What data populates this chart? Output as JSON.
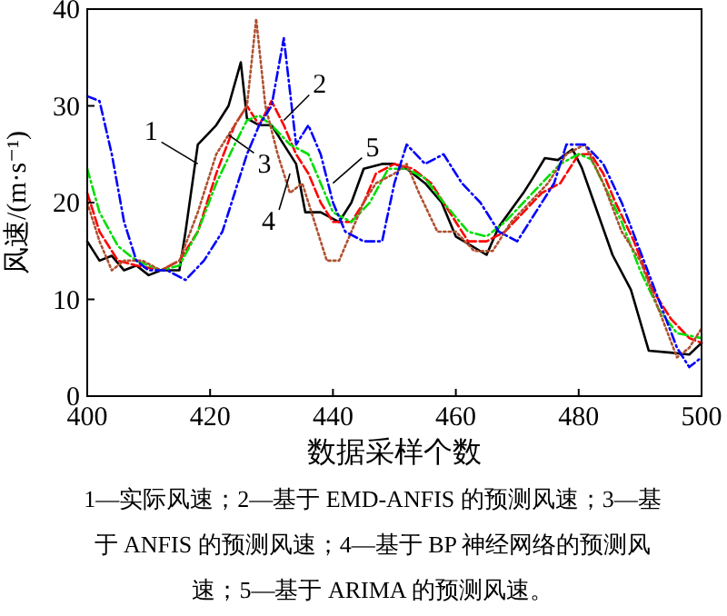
{
  "chart_data": {
    "type": "line",
    "xlabel": "数据采样个数",
    "ylabel": "风速/(m·s⁻¹)",
    "xlim": [
      400,
      500
    ],
    "xticks": [
      400,
      420,
      440,
      460,
      480,
      500
    ],
    "ylim": [
      0,
      40
    ],
    "yticks": [
      0,
      10,
      20,
      30,
      40
    ],
    "grid": false,
    "marker": "none",
    "series": [
      {
        "color": "#000000",
        "line_style": "solid",
        "x": [
          400,
          402,
          404,
          406,
          408,
          410,
          412,
          415,
          416,
          418,
          421,
          423,
          425,
          426,
          428,
          430,
          432,
          434,
          435.5,
          438,
          441,
          443,
          445,
          448,
          450,
          452,
          455,
          457.7,
          460,
          465,
          467,
          471,
          472.5,
          474.5,
          476.6,
          479,
          480.5,
          482.5,
          485.5,
          488.5,
          491.4,
          495,
          498,
          500
        ],
        "values": [
          16,
          14,
          14.5,
          13,
          13.5,
          12.5,
          13,
          13,
          17,
          26,
          28,
          30,
          34.5,
          28.7,
          28,
          28,
          26,
          24,
          19,
          19,
          18,
          20,
          23.5,
          24,
          24,
          23.5,
          22,
          20,
          16.5,
          14.6,
          17.5,
          21,
          22.5,
          24.6,
          24.4,
          25.5,
          23.6,
          20,
          14.6,
          11,
          4.7,
          4.5,
          4.3,
          5.5
        ]
      },
      {
        "color": "#ff0000",
        "line_style": "dashed",
        "x": [
          400,
          402,
          405,
          408,
          412,
          415,
          418,
          421,
          424,
          426,
          428,
          430,
          432,
          434,
          436,
          438,
          440,
          443,
          445,
          447,
          450,
          453,
          456,
          459,
          462,
          465,
          468,
          471,
          474,
          477,
          480,
          482,
          484,
          486,
          489,
          492,
          495,
          498,
          500
        ],
        "values": [
          21,
          17,
          14,
          13.5,
          13,
          14,
          17,
          23,
          28,
          30,
          28,
          30.5,
          28,
          25,
          23,
          20,
          18,
          18,
          20,
          23,
          24,
          23.5,
          22,
          19,
          16,
          16,
          17,
          19,
          21,
          22,
          25,
          25,
          23,
          20,
          16,
          11,
          8,
          6,
          5.5
        ]
      },
      {
        "color": "#00dd00",
        "line_style": "dashdot",
        "x": [
          400,
          402,
          405,
          408,
          412,
          415,
          418,
          421,
          424,
          426,
          428,
          430,
          433,
          436,
          438,
          440,
          443,
          446,
          449,
          452,
          455,
          458,
          462,
          465,
          468,
          471,
          474,
          477,
          480,
          482,
          484,
          487,
          490,
          493,
          496,
          500
        ],
        "values": [
          23.5,
          19,
          15.5,
          14,
          13,
          13.5,
          17,
          22,
          26,
          28.5,
          29,
          28,
          26,
          25,
          22,
          19,
          18,
          20,
          23.5,
          23.5,
          22.5,
          20,
          17,
          16.5,
          18,
          20,
          22,
          24,
          25,
          24.5,
          22,
          18,
          13,
          9,
          6.5,
          6
        ]
      },
      {
        "color": "#b05030",
        "line_style": "dotted",
        "x": [
          400,
          402,
          404,
          406,
          409,
          412,
          415,
          418,
          421,
          424,
          426,
          427.5,
          429,
          431,
          433,
          435,
          437,
          439,
          441,
          443,
          445,
          447,
          450,
          452,
          454,
          457,
          460,
          463,
          466,
          469,
          472,
          475,
          478,
          481,
          484,
          487,
          490,
          493,
          496,
          498,
          500
        ],
        "values": [
          20,
          16,
          13,
          14,
          14,
          13,
          14,
          19,
          25,
          28,
          30,
          39,
          30,
          25,
          21,
          22,
          18,
          14,
          14,
          17,
          20,
          22,
          23,
          24,
          21,
          17,
          17,
          15,
          15,
          18,
          20,
          22,
          25,
          26,
          22,
          17,
          14,
          9,
          4,
          5,
          7
        ]
      },
      {
        "color": "#0000ff",
        "line_style": "dashdot",
        "x": [
          400,
          402,
          404,
          406,
          408,
          410,
          413,
          416,
          419,
          422,
          424,
          426,
          428,
          430,
          432,
          434,
          436,
          438,
          440,
          442,
          445,
          448,
          450,
          452,
          455,
          458,
          461,
          464,
          467,
          470,
          473,
          476,
          478,
          481,
          484,
          487,
          490,
          493,
          496,
          498,
          500
        ],
        "values": [
          31,
          30.5,
          25,
          18,
          14,
          13,
          13,
          12,
          14,
          17,
          21,
          25,
          28,
          30,
          37,
          26,
          28,
          25,
          20,
          17,
          16,
          16,
          22,
          26,
          24,
          25,
          22,
          20,
          17,
          16,
          19,
          22,
          26,
          26,
          24,
          20,
          15,
          10,
          5,
          3,
          4
        ]
      }
    ],
    "annotations": [
      {
        "text": "1",
        "x": 418,
        "y": 24
      },
      {
        "text": "2",
        "x": 432,
        "y": 28.5
      },
      {
        "text": "3",
        "x": 423,
        "y": 27
      },
      {
        "text": "4",
        "x": 433,
        "y": 23
      },
      {
        "text": "5",
        "x": 440,
        "y": 22
      },
      "1—实际风速；2—基于 EMD-ANFIS 的预测风速；3—基于 ANFIS 的预测风速；4—基于 BP 神经网络的预测风速；5—基于 ARIMA 的预测风速。"
    ]
  }
}
